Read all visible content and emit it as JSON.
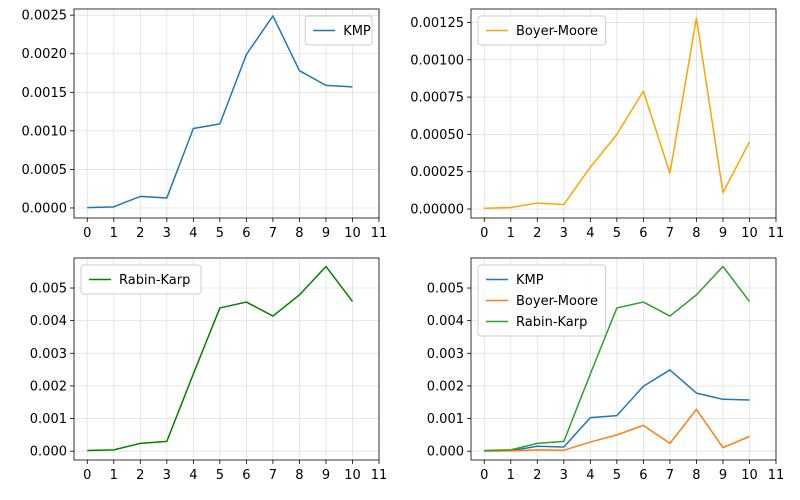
{
  "chart_data": [
    {
      "type": "line",
      "x": [
        0,
        1,
        2,
        3,
        4,
        5,
        6,
        7,
        8,
        9,
        10
      ],
      "xticks": [
        "0",
        "1",
        "2",
        "3",
        "4",
        "5",
        "6",
        "7",
        "8",
        "9",
        "10",
        "11"
      ],
      "xlim": [
        -0.5,
        11
      ],
      "ylim": [
        -0.00013,
        0.00258
      ],
      "yticks": [
        "0.0000",
        "0.0005",
        "0.0010",
        "0.0015",
        "0.0020",
        "0.0025"
      ],
      "ytick_values": [
        0,
        0.0005,
        0.001,
        0.0015,
        0.002,
        0.0025
      ],
      "grid": true,
      "legend_position": "upper right",
      "series": [
        {
          "name": "KMP",
          "color": "#1f77b4",
          "values": [
            5e-06,
            1.5e-05,
            0.00015,
            0.00013,
            0.00103,
            0.00109,
            0.00199,
            0.00249,
            0.00178,
            0.00159,
            0.00157
          ]
        }
      ]
    },
    {
      "type": "line",
      "x": [
        0,
        1,
        2,
        3,
        4,
        5,
        6,
        7,
        8,
        9,
        10
      ],
      "xticks": [
        "0",
        "1",
        "2",
        "3",
        "4",
        "5",
        "6",
        "7",
        "8",
        "9",
        "10",
        "11"
      ],
      "xlim": [
        -0.5,
        11
      ],
      "ylim": [
        -6e-05,
        0.00134
      ],
      "yticks": [
        "0.00000",
        "0.00025",
        "0.00050",
        "0.00075",
        "0.00100",
        "0.00125"
      ],
      "ytick_values": [
        0,
        0.00025,
        0.0005,
        0.00075,
        0.001,
        0.00125
      ],
      "grid": true,
      "legend_position": "upper left",
      "series": [
        {
          "name": "Boyer-Moore",
          "color": "#ffa500",
          "values": [
            5e-06,
            1e-05,
            4e-05,
            3e-05,
            0.00028,
            0.0005,
            0.00079,
            0.00024,
            0.00128,
            0.00011,
            0.00045
          ]
        }
      ]
    },
    {
      "type": "line",
      "x": [
        0,
        1,
        2,
        3,
        4,
        5,
        6,
        7,
        8,
        9,
        10
      ],
      "xticks": [
        "0",
        "1",
        "2",
        "3",
        "4",
        "5",
        "6",
        "7",
        "8",
        "9",
        "10",
        "11"
      ],
      "xlim": [
        -0.5,
        11
      ],
      "ylim": [
        -0.00027,
        0.00592
      ],
      "yticks": [
        "0.000",
        "0.001",
        "0.002",
        "0.003",
        "0.004",
        "0.005"
      ],
      "ytick_values": [
        0,
        0.001,
        0.002,
        0.003,
        0.004,
        0.005
      ],
      "grid": true,
      "legend_position": "upper left",
      "series": [
        {
          "name": "Rabin-Karp",
          "color": "#008000",
          "values": [
            2e-05,
            4e-05,
            0.00024,
            0.0003,
            0.00237,
            0.00439,
            0.00457,
            0.00414,
            0.00479,
            0.00566,
            0.00459
          ]
        }
      ]
    },
    {
      "type": "line",
      "x": [
        0,
        1,
        2,
        3,
        4,
        5,
        6,
        7,
        8,
        9,
        10
      ],
      "xticks": [
        "0",
        "1",
        "2",
        "3",
        "4",
        "5",
        "6",
        "7",
        "8",
        "9",
        "10",
        "11"
      ],
      "xlim": [
        -0.5,
        11
      ],
      "ylim": [
        -0.00027,
        0.00592
      ],
      "yticks": [
        "0.000",
        "0.001",
        "0.002",
        "0.003",
        "0.004",
        "0.005"
      ],
      "ytick_values": [
        0,
        0.001,
        0.002,
        0.003,
        0.004,
        0.005
      ],
      "grid": true,
      "legend_position": "upper left",
      "series": [
        {
          "name": "KMP",
          "color": "#1f77b4",
          "values": [
            5e-06,
            1.5e-05,
            0.00015,
            0.00013,
            0.00103,
            0.00109,
            0.00199,
            0.00249,
            0.00178,
            0.00159,
            0.00157
          ]
        },
        {
          "name": "Boyer-Moore",
          "color": "#ff7f0e",
          "values": [
            5e-06,
            1e-05,
            4e-05,
            3e-05,
            0.00028,
            0.0005,
            0.00079,
            0.00024,
            0.00128,
            0.00011,
            0.00045
          ]
        },
        {
          "name": "Rabin-Karp",
          "color": "#2ca02c",
          "values": [
            2e-05,
            4e-05,
            0.00024,
            0.0003,
            0.00237,
            0.00439,
            0.00457,
            0.00414,
            0.00479,
            0.00566,
            0.00459
          ]
        }
      ]
    }
  ]
}
